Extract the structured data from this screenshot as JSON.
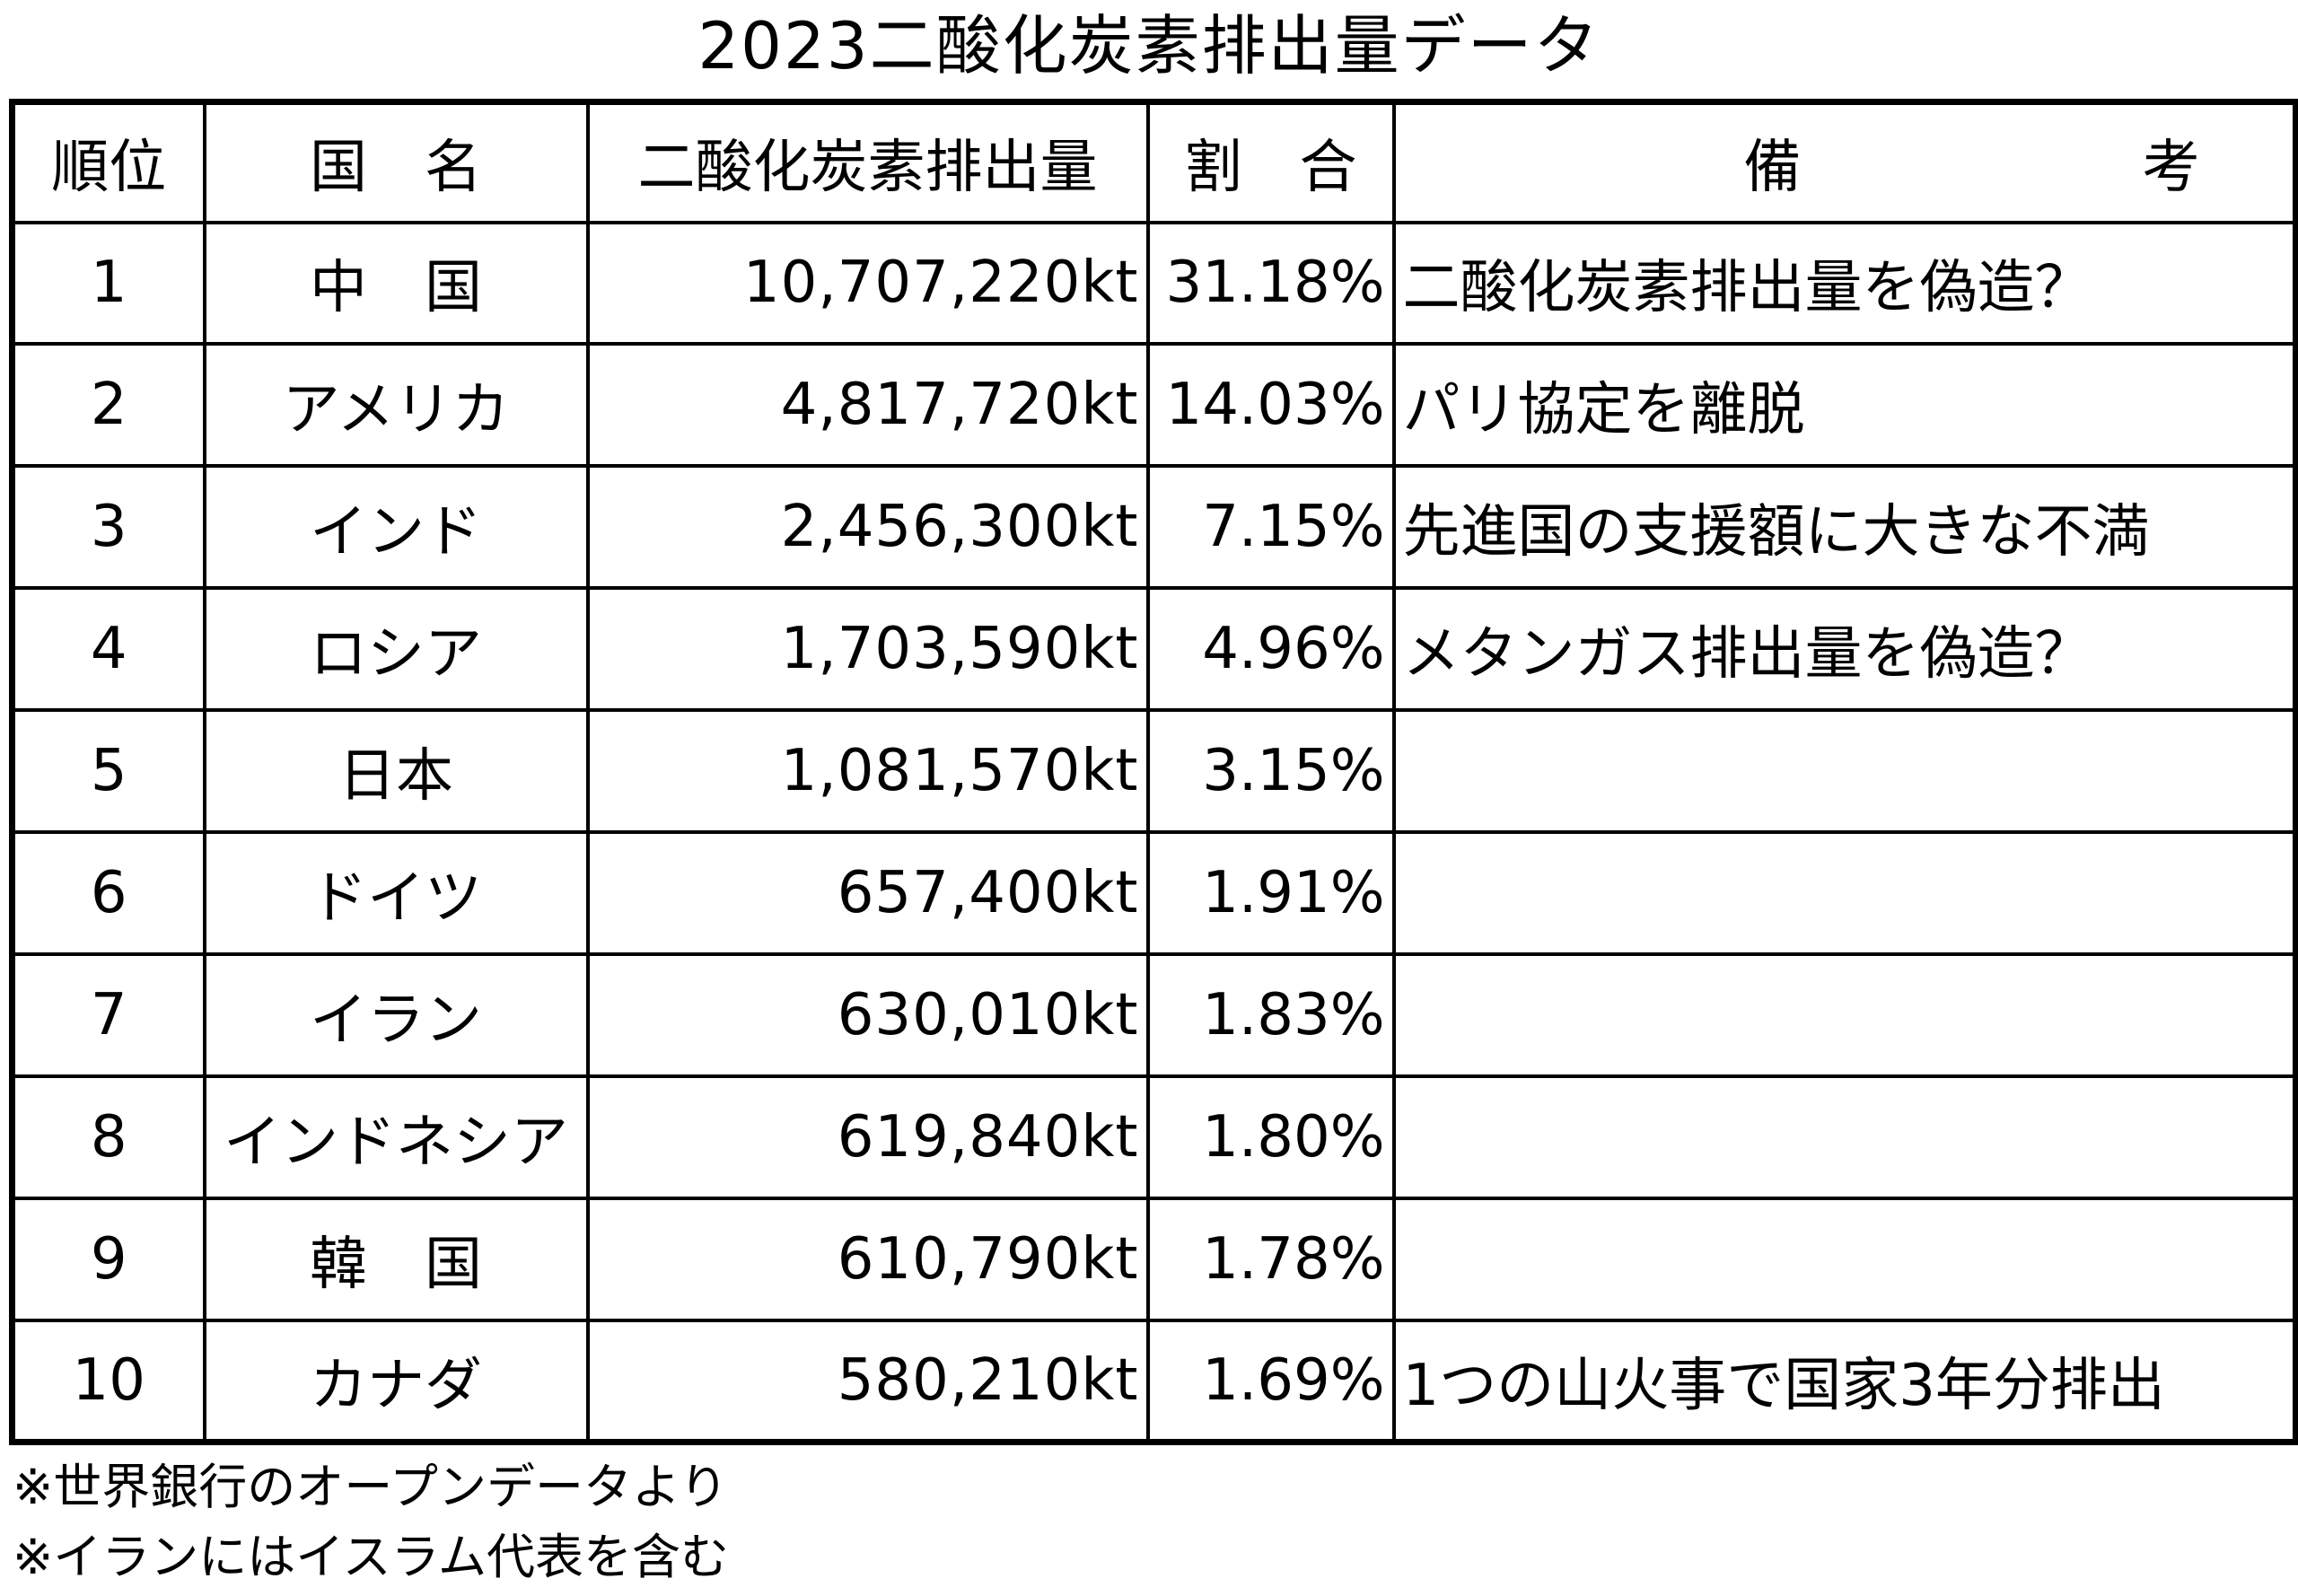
{
  "title": "2023二酸化炭素排出量データ",
  "table": {
    "headers": {
      "rank": "順位",
      "country": "国　名",
      "emission": "二酸化炭素排出量",
      "share": "割　合",
      "remarks": "備考"
    },
    "rows": [
      {
        "rank": "1",
        "country": "中　国",
        "emission": "10,707,220kt",
        "share": "31.18%",
        "remark": "二酸化炭素排出量を偽造？"
      },
      {
        "rank": "2",
        "country": "アメリカ",
        "emission": "4,817,720kt",
        "share": "14.03%",
        "remark": "パリ協定を離脱"
      },
      {
        "rank": "3",
        "country": "インド",
        "emission": "2,456,300kt",
        "share": "7.15%",
        "remark": "先進国の支援額に大きな不満"
      },
      {
        "rank": "4",
        "country": "ロシア",
        "emission": "1,703,590kt",
        "share": "4.96%",
        "remark": "メタンガス排出量を偽造？"
      },
      {
        "rank": "5",
        "country": "日本",
        "emission": "1,081,570kt",
        "share": "3.15%",
        "remark": ""
      },
      {
        "rank": "6",
        "country": "ドイツ",
        "emission": "657,400kt",
        "share": "1.91%",
        "remark": ""
      },
      {
        "rank": "7",
        "country": "イラン",
        "emission": "630,010kt",
        "share": "1.83%",
        "remark": ""
      },
      {
        "rank": "8",
        "country": "インドネシア",
        "emission": "619,840kt",
        "share": "1.80%",
        "remark": ""
      },
      {
        "rank": "9",
        "country": "韓　国",
        "emission": "610,790kt",
        "share": "1.78%",
        "remark": ""
      },
      {
        "rank": "10",
        "country": "カナダ",
        "emission": "580,210kt",
        "share": "1.69%",
        "remark": "1つの山火事で国家3年分排出"
      }
    ]
  },
  "notes": [
    "※世界銀行のオープンデータより",
    "※イランにはイスラム代表を含む"
  ]
}
